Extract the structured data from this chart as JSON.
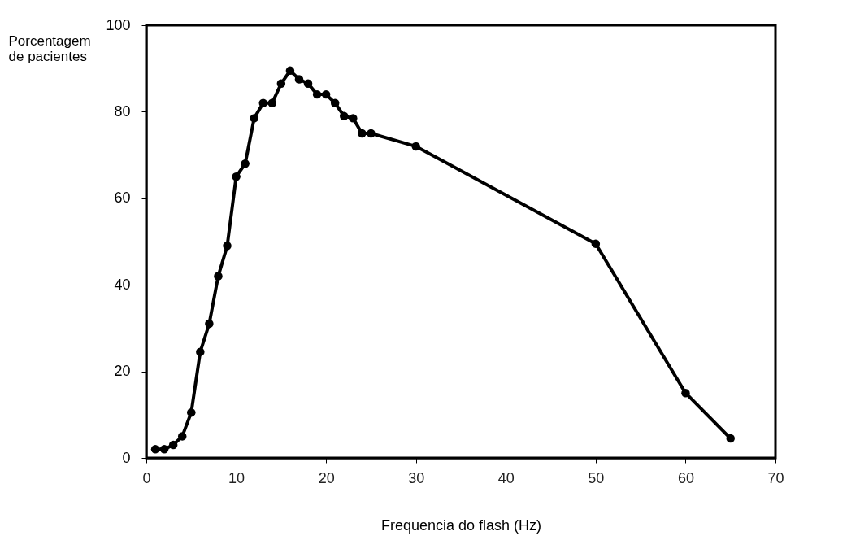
{
  "chart_data": {
    "type": "line",
    "xlabel": "Frequencia do flash (Hz)",
    "ylabel": "Porcentagem de pacientes",
    "x": [
      1,
      2,
      3,
      4,
      5,
      6,
      7,
      8,
      9,
      10,
      11,
      12,
      13,
      14,
      15,
      16,
      17,
      18,
      19,
      20,
      21,
      22,
      23,
      24,
      25,
      30,
      50,
      60,
      65
    ],
    "series": [
      {
        "color": "#000000",
        "values": [
          2,
          2,
          3,
          5,
          10.5,
          24.5,
          31,
          42,
          49,
          65,
          68,
          78.5,
          82,
          82,
          86.5,
          89.5,
          87.5,
          86.5,
          84,
          84,
          82,
          79,
          78.5,
          75,
          75,
          72,
          49.5,
          15,
          4.5
        ]
      }
    ],
    "xlim": [
      0,
      70
    ],
    "ylim": [
      0,
      100
    ],
    "xticks": [
      0,
      10,
      20,
      30,
      40,
      50,
      60,
      70
    ],
    "yticks": [
      0,
      20,
      40,
      60,
      80,
      100
    ],
    "grid": false,
    "legend": false,
    "marker": "circle",
    "line_style": "solid"
  }
}
